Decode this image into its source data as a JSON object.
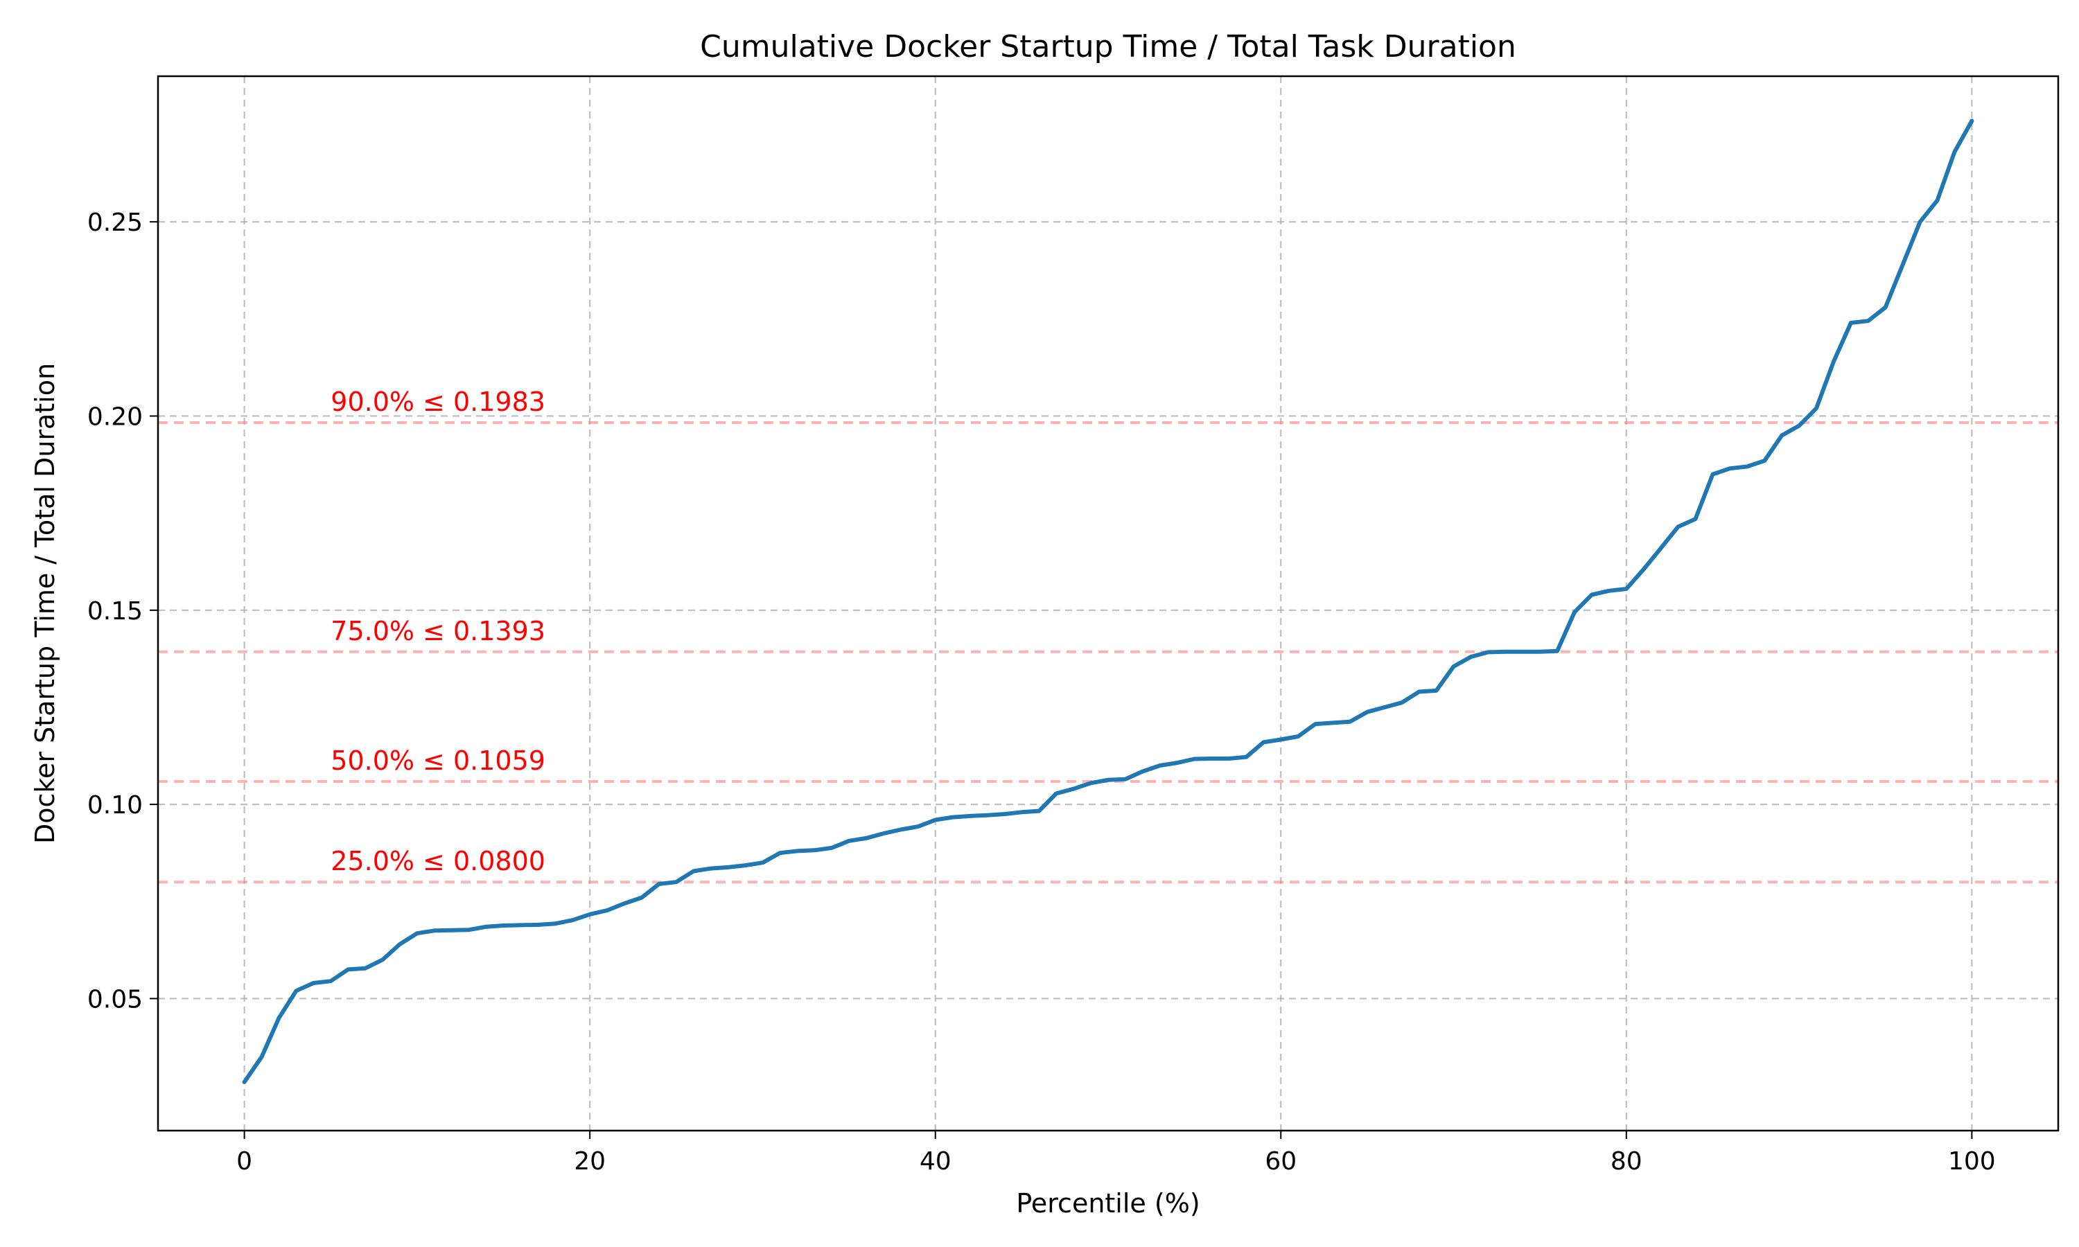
{
  "chart_data": {
    "type": "line",
    "title": "Cumulative Docker Startup Time / Total Task Duration",
    "xlabel": "Percentile (%)",
    "ylabel": "Docker Startup Time / Total Duration",
    "xlim": [
      -5,
      105
    ],
    "ylim": [
      0.016,
      0.2875
    ],
    "grid": true,
    "x_ticks": [
      0,
      20,
      40,
      60,
      80,
      100
    ],
    "y_ticks": [
      0.05,
      0.1,
      0.15,
      0.2,
      0.25
    ],
    "x_tick_labels": [
      "0",
      "20",
      "40",
      "60",
      "80",
      "100"
    ],
    "y_tick_labels": [
      "0.05",
      "0.10",
      "0.15",
      "0.20",
      "0.25"
    ],
    "series": [
      {
        "color": "#1f77b4",
        "x": [
          0,
          1,
          2,
          3,
          4,
          5,
          6,
          7,
          8,
          9,
          10,
          11,
          12,
          13,
          14,
          15,
          16,
          17,
          18,
          19,
          20,
          21,
          22,
          23,
          24,
          25,
          26,
          27,
          28,
          29,
          30,
          31,
          32,
          33,
          34,
          35,
          36,
          37,
          38,
          39,
          40,
          41,
          42,
          43,
          44,
          45,
          46,
          47,
          48,
          49,
          50,
          51,
          52,
          53,
          54,
          55,
          56,
          57,
          58,
          59,
          60,
          61,
          62,
          63,
          64,
          65,
          66,
          67,
          68,
          69,
          70,
          71,
          72,
          73,
          74,
          75,
          76,
          77,
          78,
          79,
          80,
          81,
          82,
          83,
          84,
          85,
          86,
          87,
          88,
          89,
          90,
          91,
          92,
          93,
          94,
          95,
          96,
          97,
          98,
          99,
          100
        ],
        "y": [
          0.0285,
          0.035,
          0.045,
          0.052,
          0.054,
          0.0545,
          0.0575,
          0.0578,
          0.06,
          0.064,
          0.0668,
          0.0675,
          0.0676,
          0.0677,
          0.0685,
          0.0688,
          0.0689,
          0.069,
          0.0693,
          0.0702,
          0.0717,
          0.0727,
          0.0745,
          0.076,
          0.0795,
          0.08,
          0.0828,
          0.0835,
          0.0838,
          0.0843,
          0.085,
          0.0875,
          0.088,
          0.0882,
          0.0888,
          0.0906,
          0.0913,
          0.0925,
          0.0935,
          0.0943,
          0.096,
          0.0967,
          0.097,
          0.0972,
          0.0975,
          0.098,
          0.0983,
          0.1028,
          0.104,
          0.1055,
          0.1063,
          0.1065,
          0.1085,
          0.11,
          0.1107,
          0.1117,
          0.1118,
          0.1118,
          0.1122,
          0.116,
          0.1167,
          0.1175,
          0.1207,
          0.121,
          0.1213,
          0.1238,
          0.125,
          0.1262,
          0.129,
          0.1293,
          0.1355,
          0.138,
          0.1392,
          0.1393,
          0.1393,
          0.1393,
          0.1395,
          0.1495,
          0.154,
          0.155,
          0.1555,
          0.1605,
          0.166,
          0.1715,
          0.1735,
          0.185,
          0.1865,
          0.187,
          0.1885,
          0.195,
          0.1975,
          0.202,
          0.214,
          0.224,
          0.2245,
          0.228,
          0.239,
          0.25,
          0.2555,
          0.268,
          0.276
        ]
      }
    ],
    "thresholds": [
      {
        "percent": 90.0,
        "value": 0.1983,
        "label": "90.0% ≤ 0.1983"
      },
      {
        "percent": 75.0,
        "value": 0.1393,
        "label": "75.0% ≤ 0.1393"
      },
      {
        "percent": 50.0,
        "value": 0.1059,
        "label": "50.0% ≤ 0.1059"
      },
      {
        "percent": 25.0,
        "value": 0.08,
        "label": "25.0% ≤ 0.0800"
      }
    ],
    "threshold_color": "#ff0000"
  }
}
